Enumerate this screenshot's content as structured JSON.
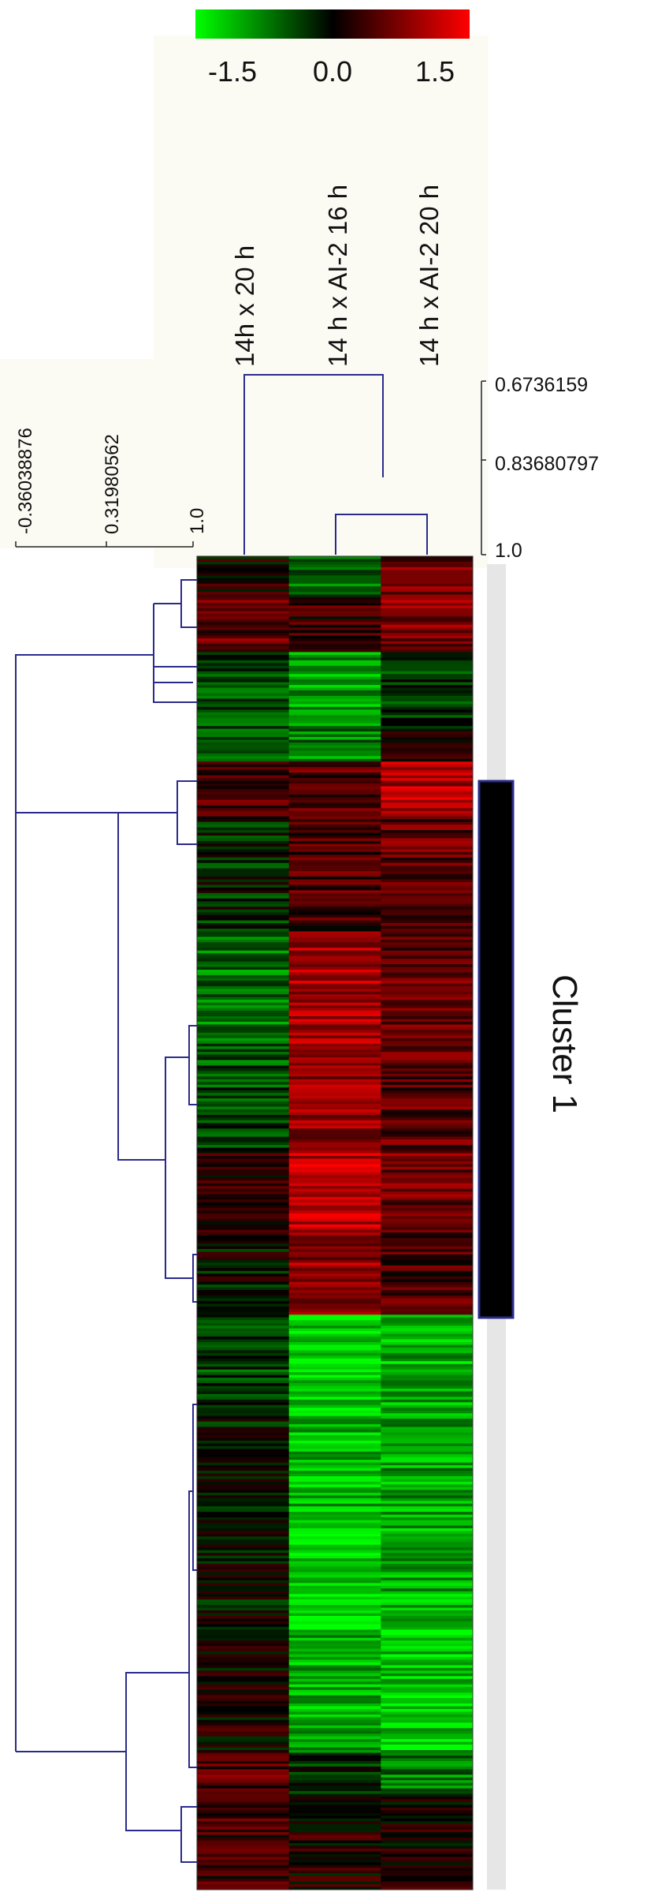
{
  "chart_data": {
    "type": "heatmap",
    "columns": [
      "14h x 20 h",
      "14 h x AI-2 16 h",
      "14 h x AI-2 20 h"
    ],
    "color_scale": {
      "min": -1.5,
      "mid": 0.0,
      "max": 1.5,
      "tick_labels": [
        "-1.5",
        "0.0",
        "1.5"
      ],
      "colors": {
        "low": "#00ff00",
        "mid": "#000000",
        "high": "#ff0000"
      }
    },
    "column_dendrogram_scale": [
      "0.6736159",
      "0.83680797",
      "1.0"
    ],
    "row_dendrogram_scale": [
      "-0.36038876",
      "0.31980562",
      "1.0"
    ],
    "cluster_label": "Cluster 1",
    "row_blocks": [
      {
        "rows": 15,
        "values": [
          0.1,
          -0.55,
          0.65
        ]
      },
      {
        "rows": 20,
        "values": [
          0.55,
          0.3,
          0.75
        ]
      },
      {
        "rows": 28,
        "values": [
          -0.45,
          -0.95,
          -0.35
        ]
      },
      {
        "rows": 12,
        "values": [
          -0.35,
          -0.75,
          0.1
        ]
      },
      {
        "rows": 20,
        "values": [
          0.45,
          0.45,
          1.0
        ]
      },
      {
        "rows": 42,
        "values": [
          -0.2,
          0.4,
          0.55
        ]
      },
      {
        "rows": 45,
        "values": [
          -0.65,
          0.95,
          0.55
        ]
      },
      {
        "rows": 35,
        "values": [
          -0.45,
          0.85,
          0.5
        ]
      },
      {
        "rows": 30,
        "values": [
          0.25,
          1.05,
          0.6
        ]
      },
      {
        "rows": 30,
        "values": [
          -0.05,
          0.85,
          0.4
        ]
      },
      {
        "rows": 35,
        "values": [
          -0.35,
          -1.25,
          -1.05
        ]
      },
      {
        "rows": 40,
        "values": [
          -0.15,
          -1.1,
          -0.95
        ]
      },
      {
        "rows": 40,
        "values": [
          -0.05,
          -1.3,
          -1.0
        ]
      },
      {
        "rows": 45,
        "values": [
          0.1,
          -1.05,
          -1.15
        ]
      },
      {
        "rows": 15,
        "values": [
          0.45,
          -0.25,
          -0.75
        ]
      },
      {
        "rows": 35,
        "values": [
          0.35,
          0.15,
          0.15
        ]
      }
    ]
  }
}
